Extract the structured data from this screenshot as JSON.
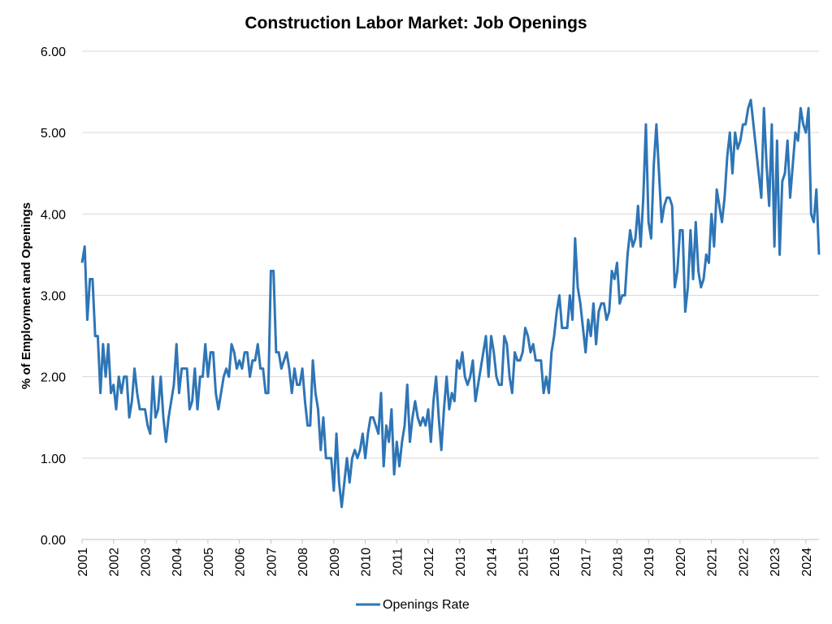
{
  "chart_data": {
    "type": "line",
    "title": "Construction Labor Market: Job Openings",
    "xlabel": "",
    "ylabel": "% of Employment and Openings",
    "x_tick_labels": [
      "2001",
      "2002",
      "2003",
      "2004",
      "2005",
      "2006",
      "2007",
      "2008",
      "2009",
      "2010",
      "2011",
      "2012",
      "2013",
      "2014",
      "2015",
      "2016",
      "2017",
      "2018",
      "2019",
      "2020",
      "2021",
      "2022",
      "2023",
      "2024"
    ],
    "y_tick_labels": [
      "0.00",
      "1.00",
      "2.00",
      "3.00",
      "4.00",
      "5.00",
      "6.00"
    ],
    "ylim": [
      0,
      6
    ],
    "x_start": "2001-01",
    "x_frequency": "monthly",
    "grid": "horizontal",
    "legend_position": "bottom",
    "series": [
      {
        "name": "Openings Rate",
        "color": "#2e75b6",
        "values": [
          3.4,
          3.6,
          2.7,
          3.2,
          3.2,
          2.5,
          2.5,
          1.8,
          2.4,
          2.0,
          2.4,
          1.8,
          1.9,
          1.6,
          2.0,
          1.8,
          2.0,
          2.0,
          1.5,
          1.7,
          2.1,
          1.8,
          1.6,
          1.6,
          1.6,
          1.4,
          1.3,
          2.0,
          1.5,
          1.6,
          2.0,
          1.5,
          1.2,
          1.5,
          1.7,
          1.9,
          2.4,
          1.8,
          2.1,
          2.1,
          2.1,
          1.6,
          1.7,
          2.1,
          1.6,
          2.0,
          2.0,
          2.4,
          2.0,
          2.3,
          2.3,
          1.8,
          1.6,
          1.8,
          2.0,
          2.1,
          2.0,
          2.4,
          2.3,
          2.1,
          2.2,
          2.1,
          2.3,
          2.3,
          2.0,
          2.2,
          2.2,
          2.4,
          2.1,
          2.1,
          1.8,
          1.8,
          3.3,
          3.3,
          2.3,
          2.3,
          2.1,
          2.2,
          2.3,
          2.1,
          1.8,
          2.1,
          1.9,
          1.9,
          2.1,
          1.7,
          1.4,
          1.4,
          2.2,
          1.8,
          1.6,
          1.1,
          1.5,
          1.0,
          1.0,
          1.0,
          0.6,
          1.3,
          0.7,
          0.4,
          0.7,
          1.0,
          0.7,
          1.0,
          1.1,
          1.0,
          1.1,
          1.3,
          1.0,
          1.3,
          1.5,
          1.5,
          1.4,
          1.3,
          1.8,
          0.9,
          1.4,
          1.2,
          1.6,
          0.8,
          1.2,
          0.9,
          1.2,
          1.4,
          1.9,
          1.2,
          1.5,
          1.7,
          1.5,
          1.4,
          1.5,
          1.4,
          1.6,
          1.2,
          1.7,
          2.0,
          1.5,
          1.1,
          1.6,
          2.0,
          1.6,
          1.8,
          1.7,
          2.2,
          2.1,
          2.3,
          2.0,
          1.9,
          2.0,
          2.2,
          1.7,
          1.9,
          2.1,
          2.3,
          2.5,
          2.0,
          2.5,
          2.3,
          2.0,
          1.9,
          1.9,
          2.5,
          2.4,
          2.0,
          1.8,
          2.3,
          2.2,
          2.2,
          2.3,
          2.6,
          2.5,
          2.3,
          2.4,
          2.2,
          2.2,
          2.2,
          1.8,
          2.0,
          1.8,
          2.3,
          2.5,
          2.8,
          3.0,
          2.6,
          2.6,
          2.6,
          3.0,
          2.7,
          3.7,
          3.1,
          2.9,
          2.6,
          2.3,
          2.7,
          2.5,
          2.9,
          2.4,
          2.8,
          2.9,
          2.9,
          2.7,
          2.8,
          3.3,
          3.2,
          3.4,
          2.9,
          3.0,
          3.0,
          3.5,
          3.8,
          3.6,
          3.7,
          4.1,
          3.6,
          4.2,
          5.1,
          3.9,
          3.7,
          4.6,
          5.1,
          4.5,
          3.9,
          4.1,
          4.2,
          4.2,
          4.1,
          3.1,
          3.3,
          3.8,
          3.8,
          2.8,
          3.1,
          3.8,
          3.2,
          3.9,
          3.3,
          3.1,
          3.2,
          3.5,
          3.4,
          4.0,
          3.6,
          4.3,
          4.1,
          3.9,
          4.2,
          4.7,
          5.0,
          4.5,
          5.0,
          4.8,
          4.9,
          5.1,
          5.1,
          5.3,
          5.4,
          5.1,
          4.8,
          4.5,
          4.2,
          5.3,
          4.6,
          4.1,
          5.1,
          3.6,
          4.9,
          3.5,
          4.4,
          4.5,
          4.9,
          4.2,
          4.6,
          5.0,
          4.9,
          5.3,
          5.1,
          5.0,
          5.3,
          4.0,
          3.9,
          4.3,
          3.5
        ]
      }
    ]
  },
  "legend": {
    "entries": [
      {
        "label": "Openings Rate",
        "color": "#2e75b6"
      }
    ]
  },
  "colors": {
    "line": "#2e75b6",
    "grid": "#d9d9d9",
    "axis": "#bfbfbf",
    "text": "#000000"
  }
}
